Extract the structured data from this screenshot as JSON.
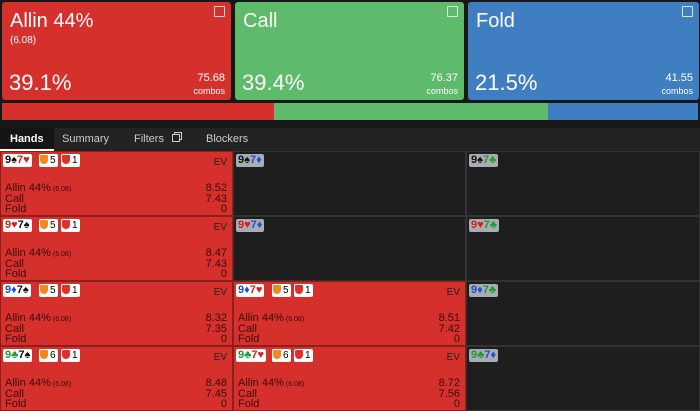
{
  "actions": [
    {
      "title": "Allin 44%",
      "subtitle": "(6.08)",
      "frequency": 39.1,
      "frequency_label": "39.1%",
      "combos": 75.68,
      "color": "#d6302d"
    },
    {
      "title": "Call",
      "subtitle": null,
      "frequency": 39.4,
      "frequency_label": "39.4%",
      "combos": 76.37,
      "color": "#5dbb6b"
    },
    {
      "title": "Fold",
      "subtitle": null,
      "frequency": 21.5,
      "frequency_label": "21.5%",
      "combos": 41.55,
      "color": "#3f7fc1"
    }
  ],
  "combos_label": "combos",
  "tabs": [
    "Hands",
    "Summary",
    "Filters",
    "Blockers"
  ],
  "ev_label": "EV",
  "grid": {
    "rows": [
      [
        {
          "cards": [
            "9♠",
            "7♥"
          ],
          "badges": [
            5,
            1
          ],
          "ev": [
            8.52,
            7.43,
            0
          ]
        },
        {
          "cards": [
            "9♠",
            "7♦"
          ]
        },
        {
          "cards": [
            "9♠",
            "7♣"
          ]
        }
      ],
      [
        {
          "cards": [
            "9♥",
            "7♠"
          ],
          "badges": [
            5,
            1
          ],
          "ev": [
            8.47,
            7.43,
            0
          ]
        },
        {
          "cards": [
            "9♥",
            "7♦"
          ]
        },
        {
          "cards": [
            "9♥",
            "7♣"
          ]
        }
      ],
      [
        {
          "cards": [
            "9♦",
            "7♠"
          ],
          "badges": [
            5,
            1
          ],
          "ev": [
            8.32,
            7.35,
            0
          ]
        },
        {
          "cards": [
            "9♦",
            "7♥"
          ],
          "badges": [
            5,
            1
          ],
          "ev": [
            8.51,
            7.42,
            0
          ]
        },
        {
          "cards": [
            "9♦",
            "7♣"
          ]
        }
      ],
      [
        {
          "cards": [
            "9♣",
            "7♠"
          ],
          "badges": [
            6,
            1
          ],
          "ev": [
            8.48,
            7.45,
            0
          ]
        },
        {
          "cards": [
            "9♣",
            "7♥"
          ],
          "badges": [
            6,
            1
          ],
          "ev": [
            8.72,
            7.56,
            0
          ]
        },
        {
          "cards": [
            "9♣",
            "7♦"
          ]
        }
      ]
    ]
  }
}
